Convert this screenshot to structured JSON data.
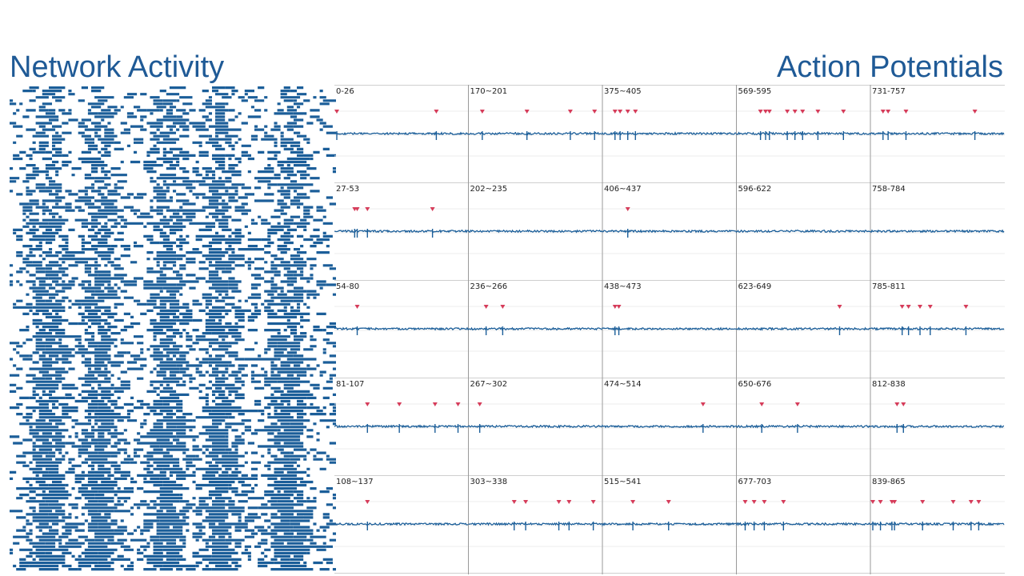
{
  "titles": {
    "network": "Network Activity",
    "action_potentials": "Action Potentials"
  },
  "colors": {
    "title": "#1f5a96",
    "trace": "#1b5e99",
    "spike_marker": "#d63c5a",
    "grid": "#cfcfcf",
    "raster": "#1b5e99"
  },
  "chart_data": [
    {
      "type": "raster",
      "title": "Network Activity",
      "description_units": "rows = electrodes, columns = time bins",
      "grid": false
    },
    {
      "type": "line",
      "title": "Action Potentials",
      "layout": "5 rows x 5 columns of traces",
      "grid": true,
      "panels": [
        {
          "label": "0-26",
          "spikes": [
            0.0,
            0.78
          ]
        },
        {
          "label": "27-53",
          "spikes": [
            0.14,
            0.16,
            0.24,
            0.75
          ]
        },
        {
          "label": "54-80",
          "spikes": [
            0.16
          ]
        },
        {
          "label": "81-107",
          "spikes": [
            0.24,
            0.49,
            0.77,
            0.95
          ]
        },
        {
          "label": "108~137",
          "spikes": [
            0.24
          ]
        },
        {
          "label": "170~201",
          "spikes": [
            0.09,
            0.44,
            0.78,
            0.97
          ]
        },
        {
          "label": "202~235",
          "spikes": []
        },
        {
          "label": "236~266",
          "spikes": [
            0.12,
            0.25
          ]
        },
        {
          "label": "267~302",
          "spikes": [
            0.07
          ]
        },
        {
          "label": "303~338",
          "spikes": [
            0.34,
            0.43,
            0.69,
            0.77,
            0.96
          ]
        },
        {
          "label": "375~405",
          "spikes": [
            0.08,
            0.12,
            0.18,
            0.24
          ]
        },
        {
          "label": "406~437",
          "spikes": [
            0.18
          ]
        },
        {
          "label": "438~473",
          "spikes": [
            0.08,
            0.11
          ]
        },
        {
          "label": "474~514",
          "spikes": [
            0.77
          ]
        },
        {
          "label": "515~541",
          "spikes": [
            0.22,
            0.5
          ]
        },
        {
          "label": "569-595",
          "spikes": [
            0.17,
            0.21,
            0.24,
            0.38,
            0.44,
            0.5,
            0.62,
            0.82
          ]
        },
        {
          "label": "596-622",
          "spikes": []
        },
        {
          "label": "623-649",
          "spikes": [
            0.79
          ]
        },
        {
          "label": "650-676",
          "spikes": [
            0.18,
            0.46
          ]
        },
        {
          "label": "677-703",
          "spikes": [
            0.05,
            0.12,
            0.2,
            0.35
          ]
        },
        {
          "label": "731-757",
          "spikes": [
            0.08,
            0.12,
            0.26,
            0.8
          ]
        },
        {
          "label": "758-784",
          "spikes": []
        },
        {
          "label": "785-811",
          "spikes": [
            0.23,
            0.28,
            0.37,
            0.45,
            0.73
          ]
        },
        {
          "label": "812-838",
          "spikes": [
            0.19,
            0.24
          ]
        },
        {
          "label": "839-865",
          "spikes": [
            0.0,
            0.06,
            0.15,
            0.17,
            0.39,
            0.63,
            0.77,
            0.83
          ]
        }
      ]
    }
  ]
}
